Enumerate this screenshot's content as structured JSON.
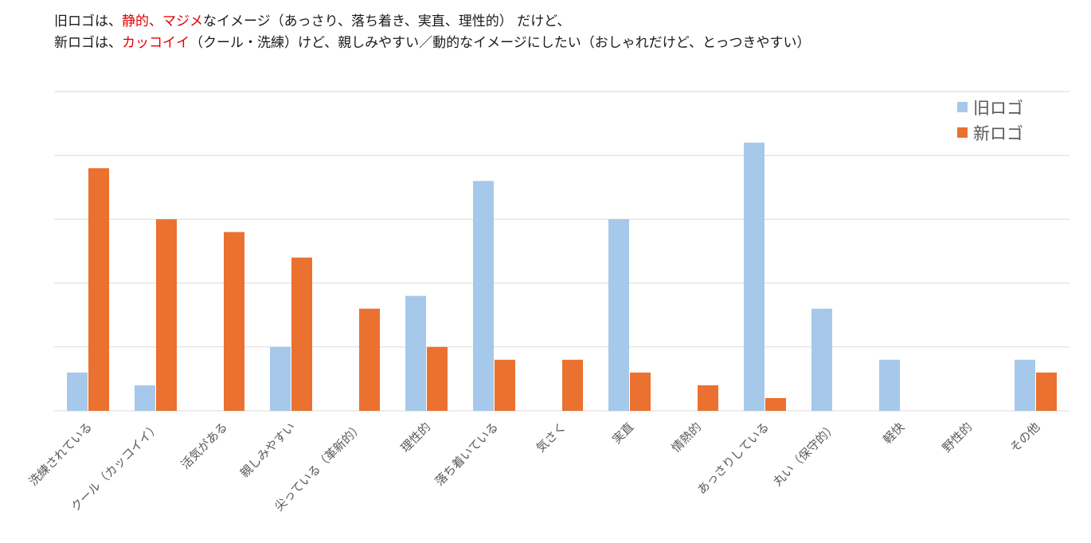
{
  "caption": {
    "line1": {
      "before": "旧ロゴは、",
      "highlight": "静的、マジメ",
      "after": "なイメージ（あっさり、落ち着き、実直、理性的） だけど、"
    },
    "line2": {
      "before": "新ロゴは、",
      "highlight": "カッコイイ",
      "after": "（クール・洗練）けど、親しみやすい／動的なイメージにしたい（おしゃれだけど、とっつきやすい）"
    }
  },
  "colors": {
    "old": "#a6c8ea",
    "new": "#ea7130",
    "grid": "#d9d9d9",
    "highlight": "#e00000"
  },
  "chart_data": {
    "type": "bar",
    "grid": true,
    "legend_position": "top-right",
    "ylim": [
      0,
      25
    ],
    "categories": [
      "洗練されている",
      "クール（カッコイイ）",
      "活気がある",
      "親しみやすい",
      "尖っている（革新的）",
      "理性的",
      "落ち着いている",
      "気さく",
      "実直",
      "情熱的",
      "あっさりしている",
      "丸い（保守的）",
      "軽快",
      "野性的",
      "その他"
    ],
    "series": [
      {
        "name": "旧ロゴ",
        "values": [
          3,
          2,
          0,
          5,
          0,
          9,
          18,
          0,
          15,
          0,
          21,
          8,
          4,
          0,
          4
        ]
      },
      {
        "name": "新ロゴ",
        "values": [
          19,
          15,
          14,
          12,
          8,
          5,
          4,
          4,
          3,
          2,
          1,
          0,
          0,
          0,
          3
        ]
      }
    ]
  }
}
